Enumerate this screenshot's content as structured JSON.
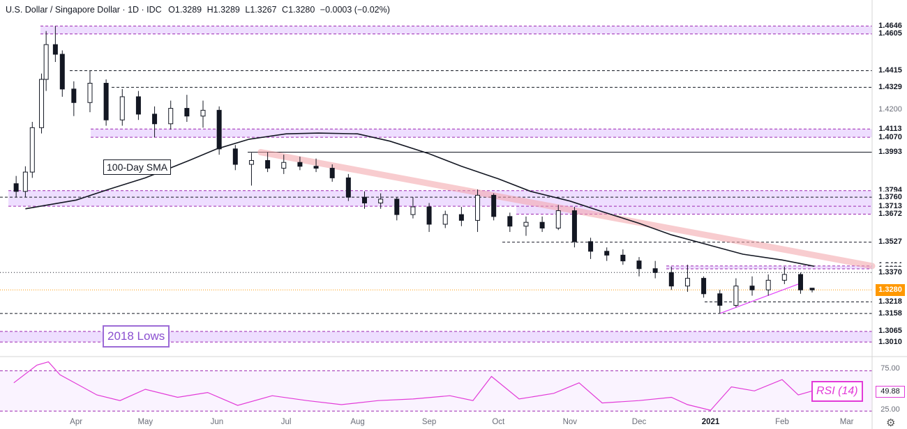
{
  "header": {
    "symbol": "U.S. Dollar / Singapore Dollar · 1D · IDC",
    "open": "O1.3289",
    "high": "H1.3289",
    "low": "L1.3267",
    "close": "C1.3280",
    "change": "−0.0003 (−0.02%)"
  },
  "annotations": {
    "sma_label": "100-Day SMA",
    "lows_label": "2018 Lows",
    "rsi_label": "RSI (14)"
  },
  "colors": {
    "up": "#ffffff",
    "down": "#131722",
    "sma": "#131722",
    "zone": "#e5ccff",
    "zone_line": "#9c27b0",
    "trendline": "#f4a3a8",
    "support_line": "#e040fb",
    "rsi": "#e23ad8",
    "last_price": "#ff9800"
  },
  "chart_data": {
    "type": "candlestick",
    "title": "U.S. Dollar / Singapore Dollar · 1D · IDC",
    "ylim": [
      1.296,
      1.468
    ],
    "price_levels": [
      {
        "label": "1.4646",
        "value": 1.4646,
        "style": "zone"
      },
      {
        "label": "1.4605",
        "value": 1.4605,
        "style": "zone"
      },
      {
        "label": "1.4415",
        "value": 1.4415,
        "style": "dashed"
      },
      {
        "label": "1.4329",
        "value": 1.4329,
        "style": "dashed"
      },
      {
        "label": "1.4113",
        "value": 1.4113,
        "style": "zone"
      },
      {
        "label": "1.4070",
        "value": 1.407,
        "style": "zone"
      },
      {
        "label": "1.3993",
        "value": 1.3993,
        "style": "solid"
      },
      {
        "label": "1.3794",
        "value": 1.3794,
        "style": "zone"
      },
      {
        "label": "1.3760",
        "value": 1.376,
        "style": "dashed"
      },
      {
        "label": "1.3713",
        "value": 1.3713,
        "style": "zone"
      },
      {
        "label": "1.3672",
        "value": 1.3672,
        "style": "zone"
      },
      {
        "label": "1.3527",
        "value": 1.3527,
        "style": "dashed"
      },
      {
        "label": "1.3404",
        "value": 1.3404,
        "style": "zone"
      },
      {
        "label": "1.3389",
        "value": 1.3389,
        "style": "zone"
      },
      {
        "label": "1.3370",
        "value": 1.337,
        "style": "dotted"
      },
      {
        "label": "1.3280",
        "value": 1.328,
        "style": "last"
      },
      {
        "label": "1.3218",
        "value": 1.3218,
        "style": "dashed"
      },
      {
        "label": "1.3158",
        "value": 1.3158,
        "style": "dashed"
      },
      {
        "label": "1.3065",
        "value": 1.3065,
        "style": "zone"
      },
      {
        "label": "1.3010",
        "value": 1.301,
        "style": "zone"
      }
    ],
    "y_ticks": [
      "1.4200"
    ],
    "x_tick_labels": [
      "Apr",
      "May",
      "Jun",
      "Jul",
      "Aug",
      "Sep",
      "Oct",
      "Nov",
      "Dec",
      "2021",
      "Feb",
      "Mar"
    ],
    "sma": {
      "name": "100-Day SMA",
      "points": [
        {
          "date": "2020-03-10",
          "value": 1.37
        },
        {
          "date": "2020-04-01",
          "value": 1.3745
        },
        {
          "date": "2020-04-15",
          "value": 1.38
        },
        {
          "date": "2020-05-01",
          "value": 1.386
        },
        {
          "date": "2020-05-20",
          "value": 1.395
        },
        {
          "date": "2020-06-01",
          "value": 1.401
        },
        {
          "date": "2020-06-15",
          "value": 1.406
        },
        {
          "date": "2020-07-01",
          "value": 1.4088
        },
        {
          "date": "2020-07-15",
          "value": 1.4092
        },
        {
          "date": "2020-08-01",
          "value": 1.4088
        },
        {
          "date": "2020-08-15",
          "value": 1.405
        },
        {
          "date": "2020-09-01",
          "value": 1.3985
        },
        {
          "date": "2020-09-15",
          "value": 1.392
        },
        {
          "date": "2020-10-01",
          "value": 1.3855
        },
        {
          "date": "2020-10-15",
          "value": 1.379
        },
        {
          "date": "2020-11-01",
          "value": 1.374
        },
        {
          "date": "2020-11-15",
          "value": 1.3685
        },
        {
          "date": "2020-12-01",
          "value": 1.3625
        },
        {
          "date": "2020-12-15",
          "value": 1.3565
        },
        {
          "date": "2021-01-01",
          "value": 1.351
        },
        {
          "date": "2021-01-15",
          "value": 1.3465
        },
        {
          "date": "2021-02-01",
          "value": 1.3435
        },
        {
          "date": "2021-02-15",
          "value": 1.3402
        }
      ]
    },
    "rsi": {
      "name": "RSI (14)",
      "ylim": [
        20,
        90
      ],
      "levels": [
        "75.00",
        "25.00"
      ],
      "last": "49.88",
      "points": [
        {
          "date": "2020-03-05",
          "value": 60
        },
        {
          "date": "2020-03-15",
          "value": 82
        },
        {
          "date": "2020-03-20",
          "value": 86
        },
        {
          "date": "2020-03-25",
          "value": 70
        },
        {
          "date": "2020-04-10",
          "value": 45
        },
        {
          "date": "2020-04-20",
          "value": 38
        },
        {
          "date": "2020-05-01",
          "value": 52
        },
        {
          "date": "2020-05-15",
          "value": 42
        },
        {
          "date": "2020-05-28",
          "value": 48
        },
        {
          "date": "2020-06-10",
          "value": 32
        },
        {
          "date": "2020-06-25",
          "value": 44
        },
        {
          "date": "2020-07-10",
          "value": 38
        },
        {
          "date": "2020-07-25",
          "value": 33
        },
        {
          "date": "2020-08-10",
          "value": 38
        },
        {
          "date": "2020-08-25",
          "value": 40
        },
        {
          "date": "2020-09-10",
          "value": 44
        },
        {
          "date": "2020-09-20",
          "value": 38
        },
        {
          "date": "2020-09-28",
          "value": 68
        },
        {
          "date": "2020-10-10",
          "value": 40
        },
        {
          "date": "2020-10-25",
          "value": 47
        },
        {
          "date": "2020-11-05",
          "value": 60
        },
        {
          "date": "2020-11-15",
          "value": 35
        },
        {
          "date": "2020-12-01",
          "value": 38
        },
        {
          "date": "2020-12-15",
          "value": 42
        },
        {
          "date": "2020-12-22",
          "value": 33
        },
        {
          "date": "2021-01-01",
          "value": 26
        },
        {
          "date": "2021-01-10",
          "value": 55
        },
        {
          "date": "2021-01-20",
          "value": 50
        },
        {
          "date": "2021-02-01",
          "value": 64
        },
        {
          "date": "2021-02-08",
          "value": 45
        },
        {
          "date": "2021-02-14",
          "value": 49.88
        }
      ]
    },
    "candles": [
      {
        "date": "2020-03-06",
        "o": 1.383,
        "h": 1.387,
        "l": 1.376,
        "c": 1.379
      },
      {
        "date": "2020-03-10",
        "o": 1.379,
        "h": 1.392,
        "l": 1.376,
        "c": 1.389
      },
      {
        "date": "2020-03-13",
        "o": 1.389,
        "h": 1.415,
        "l": 1.386,
        "c": 1.412
      },
      {
        "date": "2020-03-17",
        "o": 1.412,
        "h": 1.44,
        "l": 1.409,
        "c": 1.437
      },
      {
        "date": "2020-03-19",
        "o": 1.437,
        "h": 1.462,
        "l": 1.431,
        "c": 1.455
      },
      {
        "date": "2020-03-23",
        "o": 1.455,
        "h": 1.4646,
        "l": 1.446,
        "c": 1.45
      },
      {
        "date": "2020-03-26",
        "o": 1.45,
        "h": 1.452,
        "l": 1.428,
        "c": 1.432
      },
      {
        "date": "2020-03-31",
        "o": 1.432,
        "h": 1.436,
        "l": 1.418,
        "c": 1.425
      },
      {
        "date": "2020-04-07",
        "o": 1.425,
        "h": 1.4415,
        "l": 1.42,
        "c": 1.435
      },
      {
        "date": "2020-04-14",
        "o": 1.435,
        "h": 1.437,
        "l": 1.413,
        "c": 1.416
      },
      {
        "date": "2020-04-21",
        "o": 1.416,
        "h": 1.432,
        "l": 1.413,
        "c": 1.428
      },
      {
        "date": "2020-04-28",
        "o": 1.428,
        "h": 1.431,
        "l": 1.416,
        "c": 1.419
      },
      {
        "date": "2020-05-05",
        "o": 1.419,
        "h": 1.423,
        "l": 1.407,
        "c": 1.414
      },
      {
        "date": "2020-05-12",
        "o": 1.414,
        "h": 1.426,
        "l": 1.411,
        "c": 1.422
      },
      {
        "date": "2020-05-19",
        "o": 1.422,
        "h": 1.429,
        "l": 1.415,
        "c": 1.418
      },
      {
        "date": "2020-05-26",
        "o": 1.418,
        "h": 1.426,
        "l": 1.412,
        "c": 1.421
      },
      {
        "date": "2020-06-02",
        "o": 1.421,
        "h": 1.423,
        "l": 1.398,
        "c": 1.401
      },
      {
        "date": "2020-06-09",
        "o": 1.401,
        "h": 1.403,
        "l": 1.39,
        "c": 1.393
      },
      {
        "date": "2020-06-16",
        "o": 1.393,
        "h": 1.399,
        "l": 1.382,
        "c": 1.395
      },
      {
        "date": "2020-06-23",
        "o": 1.395,
        "h": 1.3993,
        "l": 1.389,
        "c": 1.391
      },
      {
        "date": "2020-06-30",
        "o": 1.391,
        "h": 1.398,
        "l": 1.388,
        "c": 1.394
      },
      {
        "date": "2020-07-07",
        "o": 1.394,
        "h": 1.397,
        "l": 1.39,
        "c": 1.392
      },
      {
        "date": "2020-07-14",
        "o": 1.392,
        "h": 1.396,
        "l": 1.389,
        "c": 1.391
      },
      {
        "date": "2020-07-21",
        "o": 1.391,
        "h": 1.393,
        "l": 1.384,
        "c": 1.386
      },
      {
        "date": "2020-07-28",
        "o": 1.386,
        "h": 1.388,
        "l": 1.374,
        "c": 1.376
      },
      {
        "date": "2020-08-04",
        "o": 1.376,
        "h": 1.379,
        "l": 1.37,
        "c": 1.373
      },
      {
        "date": "2020-08-11",
        "o": 1.373,
        "h": 1.378,
        "l": 1.37,
        "c": 1.375
      },
      {
        "date": "2020-08-18",
        "o": 1.375,
        "h": 1.376,
        "l": 1.364,
        "c": 1.367
      },
      {
        "date": "2020-08-25",
        "o": 1.367,
        "h": 1.376,
        "l": 1.365,
        "c": 1.371
      },
      {
        "date": "2020-09-01",
        "o": 1.371,
        "h": 1.373,
        "l": 1.358,
        "c": 1.362
      },
      {
        "date": "2020-09-08",
        "o": 1.362,
        "h": 1.369,
        "l": 1.36,
        "c": 1.367
      },
      {
        "date": "2020-09-15",
        "o": 1.367,
        "h": 1.371,
        "l": 1.361,
        "c": 1.364
      },
      {
        "date": "2020-09-22",
        "o": 1.364,
        "h": 1.38,
        "l": 1.358,
        "c": 1.377
      },
      {
        "date": "2020-09-29",
        "o": 1.377,
        "h": 1.378,
        "l": 1.364,
        "c": 1.366
      },
      {
        "date": "2020-10-06",
        "o": 1.366,
        "h": 1.368,
        "l": 1.358,
        "c": 1.361
      },
      {
        "date": "2020-10-13",
        "o": 1.361,
        "h": 1.366,
        "l": 1.356,
        "c": 1.363
      },
      {
        "date": "2020-10-20",
        "o": 1.363,
        "h": 1.366,
        "l": 1.358,
        "c": 1.36
      },
      {
        "date": "2020-10-27",
        "o": 1.36,
        "h": 1.372,
        "l": 1.359,
        "c": 1.369
      },
      {
        "date": "2020-11-03",
        "o": 1.369,
        "h": 1.371,
        "l": 1.35,
        "c": 1.353
      },
      {
        "date": "2020-11-10",
        "o": 1.353,
        "h": 1.355,
        "l": 1.344,
        "c": 1.348
      },
      {
        "date": "2020-11-17",
        "o": 1.348,
        "h": 1.35,
        "l": 1.343,
        "c": 1.346
      },
      {
        "date": "2020-11-24",
        "o": 1.346,
        "h": 1.349,
        "l": 1.341,
        "c": 1.343
      },
      {
        "date": "2020-12-01",
        "o": 1.343,
        "h": 1.345,
        "l": 1.335,
        "c": 1.339
      },
      {
        "date": "2020-12-08",
        "o": 1.339,
        "h": 1.343,
        "l": 1.334,
        "c": 1.337
      },
      {
        "date": "2020-12-15",
        "o": 1.337,
        "h": 1.34,
        "l": 1.328,
        "c": 1.33
      },
      {
        "date": "2020-12-22",
        "o": 1.33,
        "h": 1.341,
        "l": 1.327,
        "c": 1.334
      },
      {
        "date": "2020-12-29",
        "o": 1.334,
        "h": 1.335,
        "l": 1.324,
        "c": 1.326
      },
      {
        "date": "2021-01-05",
        "o": 1.326,
        "h": 1.328,
        "l": 1.3158,
        "c": 1.32
      },
      {
        "date": "2021-01-12",
        "o": 1.32,
        "h": 1.334,
        "l": 1.319,
        "c": 1.33
      },
      {
        "date": "2021-01-19",
        "o": 1.33,
        "h": 1.335,
        "l": 1.325,
        "c": 1.328
      },
      {
        "date": "2021-01-26",
        "o": 1.328,
        "h": 1.336,
        "l": 1.325,
        "c": 1.333
      },
      {
        "date": "2021-02-02",
        "o": 1.333,
        "h": 1.34,
        "l": 1.331,
        "c": 1.336
      },
      {
        "date": "2021-02-09",
        "o": 1.336,
        "h": 1.337,
        "l": 1.326,
        "c": 1.328
      },
      {
        "date": "2021-02-14",
        "o": 1.3289,
        "h": 1.3289,
        "l": 1.3267,
        "c": 1.328
      }
    ]
  }
}
